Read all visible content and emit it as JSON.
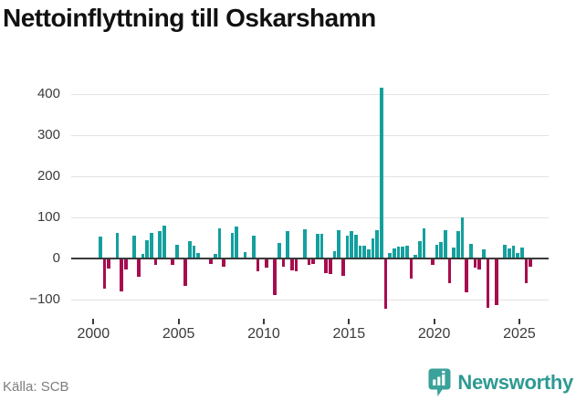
{
  "header": {
    "title": "Nettoinflyttning till Oskarshamn"
  },
  "footer": {
    "source": "Källa: SCB",
    "brand": "Newsworthy"
  },
  "colors": {
    "positive": "#14a09e",
    "negative": "#a60d4e",
    "grid": "#e2e2e2",
    "axis": "#3a3a3a",
    "tick_text": "#3b3b3b",
    "muted_text": "#7e7e7e",
    "brand": "#2d9a93",
    "title_text": "#111111"
  },
  "chart_data": {
    "type": "bar",
    "title": "Nettoinflyttning till Oskarshamn",
    "xlabel": "",
    "ylabel": "",
    "grid": "on",
    "legend": "none",
    "ylim": [
      -140,
      430
    ],
    "yticks": [
      -100,
      0,
      100,
      200,
      300,
      400
    ],
    "ytick_labels": [
      "−100",
      "0",
      "100",
      "200",
      "300",
      "400"
    ],
    "xticks": [
      2000,
      2005,
      2010,
      2015,
      2020,
      2025
    ],
    "xtick_labels": [
      "2000",
      "2005",
      "2010",
      "2015",
      "2020",
      "2025"
    ],
    "series_note": "quarterly net migration, teal = positive, crimson = negative",
    "quarters": [
      "2000Q1",
      "2000Q2",
      "2000Q3",
      "2000Q4",
      "2001Q1",
      "2001Q2",
      "2001Q3",
      "2001Q4",
      "2002Q1",
      "2002Q2",
      "2002Q3",
      "2002Q4",
      "2003Q1",
      "2003Q2",
      "2003Q3",
      "2003Q4",
      "2004Q1",
      "2004Q2",
      "2004Q3",
      "2004Q4",
      "2005Q1",
      "2005Q2",
      "2005Q3",
      "2005Q4",
      "2006Q1",
      "2006Q2",
      "2006Q3",
      "2006Q4",
      "2007Q1",
      "2007Q2",
      "2007Q3",
      "2007Q4",
      "2008Q1",
      "2008Q2",
      "2008Q3",
      "2008Q4",
      "2009Q1",
      "2009Q2",
      "2009Q3",
      "2009Q4",
      "2010Q1",
      "2010Q2",
      "2010Q3",
      "2010Q4",
      "2011Q1",
      "2011Q2",
      "2011Q3",
      "2011Q4",
      "2012Q1",
      "2012Q2",
      "2012Q3",
      "2012Q4",
      "2013Q1",
      "2013Q2",
      "2013Q3",
      "2013Q4",
      "2014Q1",
      "2014Q2",
      "2014Q3",
      "2014Q4",
      "2015Q1",
      "2015Q2",
      "2015Q3",
      "2015Q4",
      "2016Q1",
      "2016Q2",
      "2016Q3",
      "2016Q4",
      "2017Q1",
      "2017Q2",
      "2017Q3",
      "2017Q4",
      "2018Q1",
      "2018Q2",
      "2018Q3",
      "2018Q4",
      "2019Q1",
      "2019Q2",
      "2019Q3",
      "2019Q4",
      "2020Q1",
      "2020Q2",
      "2020Q3",
      "2020Q4",
      "2021Q1",
      "2021Q2",
      "2021Q3",
      "2021Q4",
      "2022Q1",
      "2022Q2",
      "2022Q3",
      "2022Q4",
      "2023Q1",
      "2023Q2",
      "2023Q3",
      "2023Q4",
      "2024Q1",
      "2024Q2",
      "2024Q3",
      "2024Q4",
      "2025Q1",
      "2025Q2",
      "2025Q3"
    ],
    "values": [
      0,
      54,
      -73,
      -24,
      0,
      63,
      -79,
      -26,
      0,
      56,
      -44,
      11,
      44,
      63,
      -15,
      67,
      80,
      0,
      -15,
      33,
      0,
      -66,
      43,
      31,
      13,
      0,
      0,
      -13,
      11,
      74,
      -19,
      0,
      63,
      78,
      0,
      16,
      0,
      56,
      -31,
      0,
      -22,
      0,
      -89,
      38,
      -21,
      67,
      -28,
      -31,
      0,
      72,
      -16,
      -13,
      61,
      61,
      -35,
      -38,
      18,
      68,
      -43,
      56,
      67,
      58,
      31,
      31,
      22,
      48,
      70,
      415,
      -122,
      13,
      24,
      28,
      28,
      31,
      -48,
      9,
      43,
      73,
      0,
      -16,
      33,
      41,
      68,
      -61,
      26,
      67,
      100,
      -83,
      36,
      -23,
      -27,
      23,
      -119,
      0,
      -114,
      0,
      33,
      25,
      32,
      14,
      27,
      -61,
      -21
    ]
  }
}
